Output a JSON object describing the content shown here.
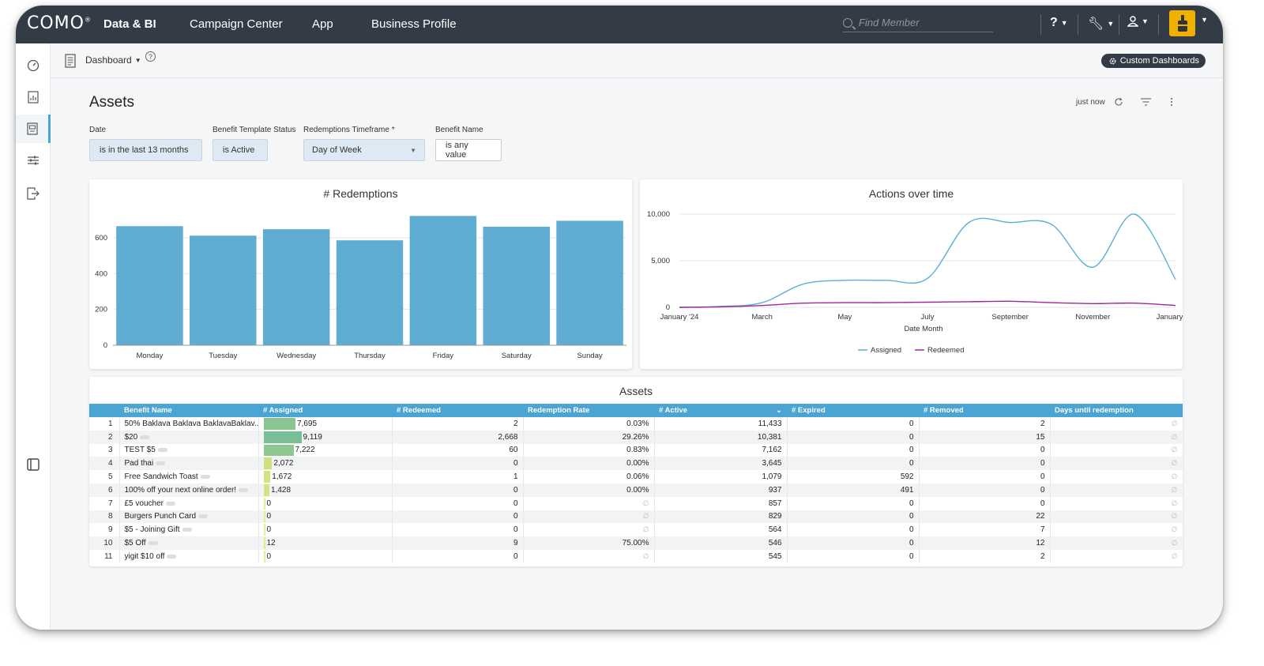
{
  "topbar": {
    "logo": "COMO",
    "nav": [
      "Data & BI",
      "Campaign Center",
      "App",
      "Business Profile"
    ],
    "search_placeholder": "Find Member"
  },
  "subbar": {
    "dashboard_label": "Dashboard",
    "custom_dashboards": "Custom Dashboards"
  },
  "page": {
    "title": "Assets",
    "last_updated": "just now"
  },
  "filters": [
    {
      "label": "Date",
      "value": "is in the last 13 months"
    },
    {
      "label": "Benefit Template Status",
      "value": "is Active"
    },
    {
      "label": "Redemptions Timeframe *",
      "value": "Day of Week"
    },
    {
      "label": "Benefit Name",
      "value": "is any value"
    }
  ],
  "colors": {
    "accent": "#4aa4d4",
    "bar": "#5facd3",
    "assigned": "#5aafd6",
    "redeemed": "#a0289b",
    "topbar": "#333b47"
  },
  "chart_data": [
    {
      "type": "bar",
      "title": "# Redemptions",
      "categories": [
        "Monday",
        "Tuesday",
        "Wednesday",
        "Thursday",
        "Friday",
        "Saturday",
        "Sunday"
      ],
      "values": [
        665,
        612,
        648,
        586,
        722,
        662,
        695
      ],
      "yticks": [
        "0",
        "200",
        "400",
        "600"
      ],
      "ylim": [
        0,
        750
      ]
    },
    {
      "type": "line",
      "title": "Actions over time",
      "xlabel": "Date Month",
      "x": [
        "2024-01",
        "2024-02",
        "2024-03",
        "2024-04",
        "2024-05",
        "2024-06",
        "2024-07",
        "2024-08",
        "2024-09",
        "2024-10",
        "2024-11",
        "2024-12",
        "2025-01"
      ],
      "xticks": [
        "January '24",
        "March",
        "May",
        "July",
        "September",
        "November",
        "January '25"
      ],
      "yticks": [
        "0",
        "5,000",
        "10,000"
      ],
      "ylim": [
        0,
        10000
      ],
      "legend": "bottom",
      "series": [
        {
          "name": "Assigned",
          "values": [
            0,
            100,
            500,
            2500,
            2900,
            2900,
            3100,
            9100,
            9100,
            8900,
            4300,
            10000,
            3000
          ]
        },
        {
          "name": "Redeemed",
          "values": [
            0,
            50,
            200,
            450,
            500,
            500,
            550,
            600,
            650,
            500,
            400,
            450,
            200
          ]
        }
      ]
    }
  ],
  "table": {
    "title": "Assets",
    "columns": [
      "",
      "Benefit Name",
      "# Assigned",
      "# Redeemed",
      "Redemption Rate",
      "# Active",
      "# Expired",
      "# Removed",
      "Days until redemption"
    ],
    "max_assigned": 9119,
    "rows": [
      {
        "idx": "1",
        "name": "50% Baklava Baklava BaklavaBaklav...",
        "assigned": "7,695",
        "assigned_n": 7695,
        "redeemed": "2",
        "rate": "0.03%",
        "active": "11,433",
        "expired": "0",
        "removed": "2",
        "days": "∅"
      },
      {
        "idx": "2",
        "name": "$20",
        "assigned": "9,119",
        "assigned_n": 9119,
        "redeemed": "2,668",
        "rate": "29.26%",
        "active": "10,381",
        "expired": "0",
        "removed": "15",
        "days": "∅"
      },
      {
        "idx": "3",
        "name": "TEST $5",
        "assigned": "7,222",
        "assigned_n": 7222,
        "redeemed": "60",
        "rate": "0.83%",
        "active": "7,162",
        "expired": "0",
        "removed": "0",
        "days": "∅"
      },
      {
        "idx": "4",
        "name": "Pad thai",
        "assigned": "2,072",
        "assigned_n": 2072,
        "redeemed": "0",
        "rate": "0.00%",
        "active": "3,645",
        "expired": "0",
        "removed": "0",
        "days": "∅"
      },
      {
        "idx": "5",
        "name": "Free Sandwich Toast",
        "assigned": "1,672",
        "assigned_n": 1672,
        "redeemed": "1",
        "rate": "0.06%",
        "active": "1,079",
        "expired": "592",
        "removed": "0",
        "days": "∅"
      },
      {
        "idx": "6",
        "name": "100% off your next online order!",
        "assigned": "1,428",
        "assigned_n": 1428,
        "redeemed": "0",
        "rate": "0.00%",
        "active": "937",
        "expired": "491",
        "removed": "0",
        "days": "∅"
      },
      {
        "idx": "7",
        "name": "£5 voucher",
        "assigned": "0",
        "assigned_n": 0,
        "redeemed": "0",
        "rate": "∅",
        "active": "857",
        "expired": "0",
        "removed": "0",
        "days": "∅"
      },
      {
        "idx": "8",
        "name": "Burgers Punch Card",
        "assigned": "0",
        "assigned_n": 0,
        "redeemed": "0",
        "rate": "∅",
        "active": "829",
        "expired": "0",
        "removed": "22",
        "days": "∅"
      },
      {
        "idx": "9",
        "name": "$5 - Joining Gift",
        "assigned": "0",
        "assigned_n": 0,
        "redeemed": "0",
        "rate": "∅",
        "active": "564",
        "expired": "0",
        "removed": "7",
        "days": "∅"
      },
      {
        "idx": "10",
        "name": "$5 Off",
        "assigned": "12",
        "assigned_n": 12,
        "redeemed": "9",
        "rate": "75.00%",
        "active": "546",
        "expired": "0",
        "removed": "12",
        "days": "∅"
      },
      {
        "idx": "11",
        "name": "yigit $10 off",
        "assigned": "0",
        "assigned_n": 0,
        "redeemed": "0",
        "rate": "∅",
        "active": "545",
        "expired": "0",
        "removed": "2",
        "days": "∅"
      }
    ]
  }
}
